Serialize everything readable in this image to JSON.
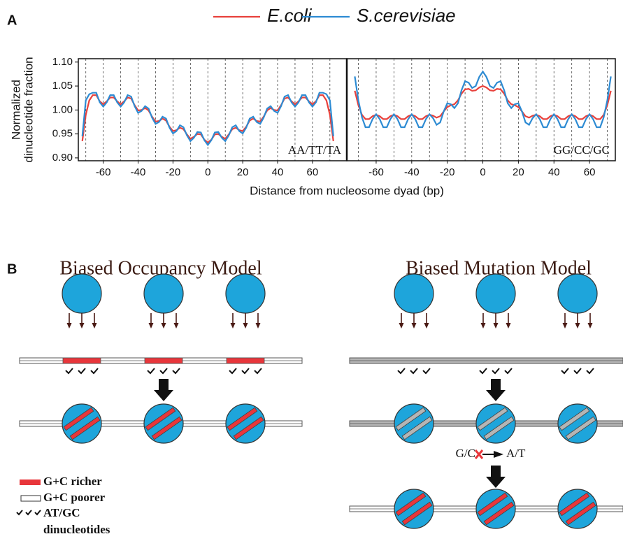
{
  "chart_data": [
    {
      "type": "line",
      "annotation": "AA/TT/TA",
      "ylabel": [
        "Normalized",
        "dinucleotide fraction"
      ],
      "xlim": [
        -74.3,
        79.7
      ],
      "ylim": [
        0.894,
        1.107
      ],
      "xticks": [
        -60,
        -40,
        -20,
        0,
        20,
        40,
        60
      ],
      "yticks": [
        {
          "value": 0.9,
          "label": "0.90"
        },
        0.95,
        {
          "value": 1,
          "label": "1.00"
        },
        1.05,
        {
          "value": 1.1,
          "label": "1.10"
        }
      ],
      "xgrid": [
        -70,
        -60,
        -50,
        -40,
        -30,
        -20,
        -10,
        0,
        10,
        20,
        30,
        40,
        50,
        60,
        70
      ],
      "x": [
        -72,
        -70,
        -68,
        -66,
        -64,
        -62,
        -60,
        -58,
        -56,
        -54,
        -52,
        -50,
        -48,
        -46,
        -44,
        -42,
        -40,
        -38,
        -36,
        -34,
        -32,
        -30,
        -28,
        -26,
        -24,
        -22,
        -20,
        -18,
        -16,
        -14,
        -12,
        -10,
        -8,
        -6,
        -4,
        -2,
        0,
        2,
        4,
        6,
        8,
        10,
        12,
        14,
        16,
        18,
        20,
        22,
        24,
        26,
        28,
        30,
        32,
        34,
        36,
        38,
        40,
        42,
        44,
        46,
        48,
        50,
        52,
        54,
        56,
        58,
        60,
        62,
        64,
        66,
        68,
        70,
        72
      ],
      "series": [
        {
          "name": "E.coli",
          "color": "#e8413c",
          "values": [
            0.935,
            0.99,
            1.02,
            1.031,
            1.031,
            1.018,
            1.012,
            1.018,
            1.026,
            1.026,
            1.018,
            1.012,
            1.018,
            1.026,
            1.024,
            1.01,
            0.999,
            1.0,
            1.004,
            0.999,
            0.986,
            0.976,
            0.977,
            0.982,
            0.978,
            0.965,
            0.956,
            0.958,
            0.963,
            0.96,
            0.949,
            0.94,
            0.944,
            0.95,
            0.949,
            0.938,
            0.932,
            0.938,
            0.949,
            0.95,
            0.944,
            0.94,
            0.949,
            0.96,
            0.963,
            0.958,
            0.956,
            0.965,
            0.978,
            0.982,
            0.977,
            0.976,
            0.986,
            0.999,
            1.004,
            1.0,
            0.999,
            1.01,
            1.024,
            1.026,
            1.018,
            1.012,
            1.018,
            1.026,
            1.026,
            1.018,
            1.012,
            1.018,
            1.031,
            1.031,
            1.02,
            0.99,
            0.935
          ]
        },
        {
          "name": "S.cerevisiae",
          "color": "#2d8bd3",
          "values": [
            0.945,
            1.02,
            1.033,
            1.036,
            1.036,
            1.016,
            1.007,
            1.016,
            1.031,
            1.031,
            1.016,
            1.007,
            1.016,
            1.031,
            1.028,
            1.008,
            0.994,
            0.998,
            1.008,
            1.003,
            0.984,
            0.971,
            0.975,
            0.986,
            0.982,
            0.963,
            0.951,
            0.956,
            0.968,
            0.964,
            0.947,
            0.935,
            0.942,
            0.954,
            0.953,
            0.937,
            0.927,
            0.937,
            0.953,
            0.954,
            0.942,
            0.935,
            0.947,
            0.964,
            0.968,
            0.956,
            0.951,
            0.963,
            0.982,
            0.986,
            0.975,
            0.971,
            0.984,
            1.003,
            1.008,
            0.998,
            0.994,
            1.008,
            1.028,
            1.031,
            1.016,
            1.007,
            1.016,
            1.031,
            1.031,
            1.016,
            1.007,
            1.016,
            1.036,
            1.036,
            1.033,
            1.02,
            0.945
          ]
        }
      ]
    },
    {
      "type": "line",
      "annotation": "GG/CC/GC",
      "xlim": [
        -76.5,
        74.5
      ],
      "ylim": [
        0.894,
        1.107
      ],
      "xticks": [
        -60,
        -40,
        -20,
        0,
        20,
        40,
        60
      ],
      "xgrid": [
        -70,
        -60,
        -50,
        -40,
        -30,
        -20,
        -10,
        0,
        10,
        20,
        30,
        40,
        50,
        60,
        70
      ],
      "x": [
        -72,
        -70,
        -68,
        -66,
        -64,
        -62,
        -60,
        -58,
        -56,
        -54,
        -52,
        -50,
        -48,
        -46,
        -44,
        -42,
        -40,
        -38,
        -36,
        -34,
        -32,
        -30,
        -28,
        -26,
        -24,
        -22,
        -20,
        -18,
        -16,
        -14,
        -12,
        -10,
        -8,
        -6,
        -4,
        -2,
        0,
        2,
        4,
        6,
        8,
        10,
        12,
        14,
        16,
        18,
        20,
        22,
        24,
        26,
        28,
        30,
        32,
        34,
        36,
        38,
        40,
        42,
        44,
        46,
        48,
        50,
        52,
        54,
        56,
        58,
        60,
        62,
        64,
        66,
        68,
        70,
        72
      ],
      "series": [
        {
          "name": "E.coli",
          "color": "#e8413c",
          "values": [
            1.04,
            1.01,
            0.99,
            0.981,
            0.981,
            0.987,
            0.99,
            0.987,
            0.981,
            0.981,
            0.987,
            0.99,
            0.987,
            0.981,
            0.981,
            0.987,
            0.99,
            0.987,
            0.981,
            0.981,
            0.987,
            0.99,
            0.988,
            0.984,
            0.987,
            0.997,
            1.006,
            1.01,
            1.012,
            1.02,
            1.034,
            1.043,
            1.044,
            1.04,
            1.041,
            1.047,
            1.05,
            1.047,
            1.041,
            1.04,
            1.044,
            1.043,
            1.034,
            1.02,
            1.012,
            1.01,
            1.006,
            0.997,
            0.987,
            0.984,
            0.988,
            0.99,
            0.987,
            0.981,
            0.981,
            0.987,
            0.99,
            0.987,
            0.981,
            0.981,
            0.987,
            0.99,
            0.987,
            0.981,
            0.981,
            0.987,
            0.99,
            0.987,
            0.981,
            0.981,
            0.99,
            1.01,
            1.04
          ]
        },
        {
          "name": "S.cerevisiae",
          "color": "#2d8bd3",
          "values": [
            1.07,
            1.02,
            0.985,
            0.964,
            0.964,
            0.981,
            0.991,
            0.981,
            0.964,
            0.964,
            0.981,
            0.991,
            0.981,
            0.964,
            0.964,
            0.981,
            0.991,
            0.981,
            0.964,
            0.964,
            0.981,
            0.991,
            0.983,
            0.969,
            0.974,
            0.997,
            1.014,
            1.012,
            1.004,
            1.014,
            1.041,
            1.06,
            1.057,
            1.046,
            1.05,
            1.069,
            1.08,
            1.069,
            1.05,
            1.046,
            1.057,
            1.06,
            1.041,
            1.014,
            1.004,
            1.012,
            1.014,
            0.997,
            0.974,
            0.969,
            0.983,
            0.991,
            0.981,
            0.964,
            0.964,
            0.981,
            0.991,
            0.981,
            0.964,
            0.964,
            0.981,
            0.991,
            0.981,
            0.964,
            0.964,
            0.981,
            0.991,
            0.981,
            0.964,
            0.964,
            0.985,
            1.02,
            1.07
          ]
        }
      ]
    }
  ],
  "panel_a": {
    "label": "A",
    "xlabel": "Distance from nucleosome dyad (bp)"
  },
  "panel_b": {
    "label": "B",
    "models": [
      {
        "title": "Biased Occupancy Model"
      },
      {
        "title": "Biased Mutation Model",
        "mutation": {
          "from": "G/C",
          "to": "A/T"
        }
      }
    ],
    "legend": [
      {
        "lines": [
          "G+C richer"
        ]
      },
      {
        "lines": [
          "G+C poorer"
        ]
      },
      {
        "lines": [
          "AT/GC",
          "dinucleotides"
        ]
      }
    ]
  }
}
